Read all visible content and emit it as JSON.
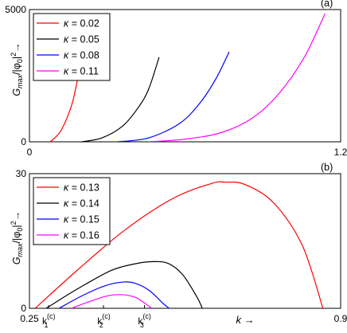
{
  "chart_data": [
    {
      "type": "line",
      "panel_label": "(a)",
      "ylabel_main": "G",
      "ylabel_sub": "max",
      "ylabel_rest": "/|φ",
      "ylabel_sub2": "0",
      "ylabel_end": "|",
      "ylabel_sup": "2",
      "ylabel_arrow": "→",
      "xlim": [
        0,
        1.2
      ],
      "ylim": [
        0,
        5000
      ],
      "x_ticks": [
        {
          "value": 0,
          "label": "0"
        },
        {
          "value": 1.2,
          "label": "1.2"
        }
      ],
      "y_ticks": [
        {
          "value": 0,
          "label": "0"
        },
        {
          "value": 5000,
          "label": "5000"
        }
      ],
      "legend_position": "top-left",
      "series": [
        {
          "name": "κ = 0.02",
          "legend_symbol": "κ",
          "legend_value": " = 0.02",
          "color": "#ff0000",
          "x": [
            0.08,
            0.12,
            0.16,
            0.18,
            0.2
          ],
          "y": [
            0,
            400,
            1300,
            2100,
            3100
          ]
        },
        {
          "name": "κ = 0.05",
          "legend_symbol": "κ",
          "legend_value": " = 0.05",
          "color": "#000000",
          "x": [
            0.2,
            0.28,
            0.36,
            0.42,
            0.46,
            0.5
          ],
          "y": [
            0,
            150,
            600,
            1300,
            2000,
            3200
          ]
        },
        {
          "name": "κ = 0.08",
          "legend_symbol": "κ",
          "legend_value": " = 0.08",
          "color": "#0000ff",
          "x": [
            0.34,
            0.46,
            0.58,
            0.66,
            0.72,
            0.77
          ],
          "y": [
            0,
            150,
            700,
            1500,
            2400,
            3400
          ]
        },
        {
          "name": "κ = 0.11",
          "legend_symbol": "κ",
          "legend_value": " = 0.11",
          "color": "#ff00ff",
          "x": [
            0.46,
            0.6,
            0.74,
            0.86,
            0.96,
            1.06,
            1.14
          ],
          "y": [
            0,
            100,
            350,
            900,
            1800,
            3200,
            4850
          ]
        }
      ]
    },
    {
      "type": "line",
      "panel_label": "(b)",
      "ylabel_main": "G",
      "ylabel_sub": "max",
      "ylabel_rest": "/|φ",
      "ylabel_sub2": "0",
      "ylabel_end": "|",
      "ylabel_sup": "2",
      "ylabel_arrow": "→",
      "xlabel": "k →",
      "xlim": [
        0.25,
        0.9
      ],
      "ylim": [
        0,
        30
      ],
      "x_ticks": [
        {
          "value": 0.25,
          "label": "0.25"
        },
        {
          "value": 0.9,
          "label": "0.9"
        }
      ],
      "y_ticks": [
        {
          "value": 0,
          "label": "0"
        },
        {
          "value": 30,
          "label": "30"
        }
      ],
      "critical_k": [
        {
          "value": 0.29,
          "base": "k",
          "sub": "1",
          "sup": "(c)"
        },
        {
          "value": 0.405,
          "base": "k",
          "sub": "2",
          "sup": "(c)"
        },
        {
          "value": 0.49,
          "base": "k",
          "sub": "3",
          "sup": "(c)"
        }
      ],
      "legend_position": "top-left",
      "series": [
        {
          "name": "κ = 0.13",
          "legend_symbol": "κ",
          "legend_value": " = 0.13",
          "color": "#ff0000",
          "x": [
            0.262,
            0.35,
            0.45,
            0.55,
            0.63,
            0.66,
            0.7,
            0.76,
            0.82,
            0.863
          ],
          "y": [
            0,
            8.5,
            17.5,
            24.5,
            27.8,
            28.1,
            27.6,
            23.5,
            14.0,
            0
          ]
        },
        {
          "name": "κ = 0.14",
          "legend_symbol": "κ",
          "legend_value": " = 0.14",
          "color": "#000000",
          "x": [
            0.285,
            0.35,
            0.42,
            0.47,
            0.508,
            0.54,
            0.57,
            0.6,
            0.611
          ],
          "y": [
            0,
            4.3,
            8.4,
            9.9,
            10.4,
            10.0,
            7.5,
            2.5,
            0
          ]
        },
        {
          "name": "κ = 0.15",
          "legend_symbol": "κ",
          "legend_value": " = 0.15",
          "color": "#0000ff",
          "x": [
            0.312,
            0.36,
            0.41,
            0.445,
            0.47,
            0.5,
            0.53,
            0.542
          ],
          "y": [
            0,
            2.8,
            5.1,
            5.85,
            5.6,
            4.0,
            1.0,
            0
          ]
        },
        {
          "name": "κ = 0.16",
          "legend_symbol": "κ",
          "legend_value": " = 0.16",
          "color": "#ff00ff",
          "x": [
            0.338,
            0.37,
            0.41,
            0.44,
            0.47,
            0.49,
            0.505
          ],
          "y": [
            0,
            1.3,
            2.7,
            3.05,
            2.5,
            1.2,
            0
          ]
        }
      ]
    }
  ]
}
